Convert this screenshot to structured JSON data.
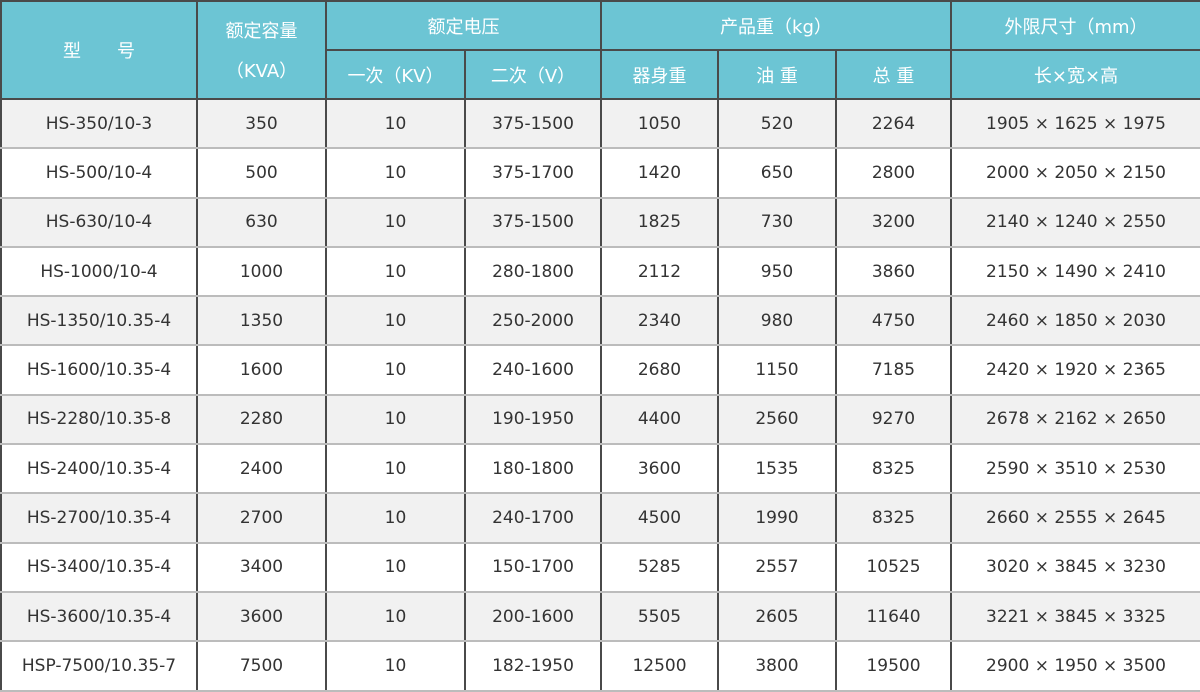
{
  "header": {
    "model": "型　　号",
    "capacity": "额定容量",
    "capacity_unit": "（KVA）",
    "voltage": "额定电压",
    "primary": "一次（KV）",
    "secondary": "二次（V）",
    "weight": "产品重（kg）",
    "body_weight": "器身重",
    "oil_weight": "油 重",
    "total_weight": "总 重",
    "dimensions": "外限尺寸（mm）",
    "dimensions_sub": "长×宽×高"
  },
  "header_color": "#6cc5d4",
  "rows": [
    [
      "HS-350/10-3",
      "350",
      "10",
      "375-1500",
      "1050",
      "520",
      "2264",
      "1905 × 1625 × 1975"
    ],
    [
      "HS-500/10-4",
      "500",
      "10",
      "375-1700",
      "1420",
      "650",
      "2800",
      "2000 × 2050 × 2150"
    ],
    [
      "HS-630/10-4",
      "630",
      "10",
      "375-1500",
      "1825",
      "730",
      "3200",
      "2140 × 1240 × 2550"
    ],
    [
      "HS-1000/10-4",
      "1000",
      "10",
      "280-1800",
      "2112",
      "950",
      "3860",
      "2150 × 1490 × 2410"
    ],
    [
      "HS-1350/10.35-4",
      "1350",
      "10",
      "250-2000",
      "2340",
      "980",
      "4750",
      "2460 × 1850 × 2030"
    ],
    [
      "HS-1600/10.35-4",
      "1600",
      "10",
      "240-1600",
      "2680",
      "1150",
      "7185",
      "2420 × 1920 × 2365"
    ],
    [
      "HS-2280/10.35-8",
      "2280",
      "10",
      "190-1950",
      "4400",
      "2560",
      "9270",
      "2678 × 2162 × 2650"
    ],
    [
      "HS-2400/10.35-4",
      "2400",
      "10",
      "180-1800",
      "3600",
      "1535",
      "8325",
      "2590 × 3510 × 2530"
    ],
    [
      "HS-2700/10.35-4",
      "2700",
      "10",
      "240-1700",
      "4500",
      "1990",
      "8325",
      "2660 × 2555 × 2645"
    ],
    [
      "HS-3400/10.35-4",
      "3400",
      "10",
      "150-1700",
      "5285",
      "2557",
      "10525",
      "3020 × 3845 × 3230"
    ],
    [
      "HS-3600/10.35-4",
      "3600",
      "10",
      "200-1600",
      "5505",
      "2605",
      "11640",
      "3221 × 3845 × 3325"
    ],
    [
      "HSP-7500/10.35-7",
      "7500",
      "10",
      "182-1950",
      "12500",
      "3800",
      "19500",
      "2900 × 1950 × 3500"
    ]
  ]
}
